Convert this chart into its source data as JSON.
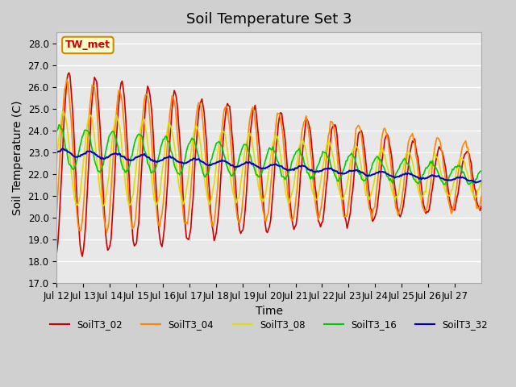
{
  "title": "Soil Temperature Set 3",
  "xlabel": "Time",
  "ylabel": "Soil Temperature (C)",
  "annotation": "TW_met",
  "annotation_color": "#cc0000",
  "annotation_bg": "#ffffcc",
  "annotation_border": "#cc8800",
  "ylim": [
    17.0,
    28.5
  ],
  "yticks": [
    17.0,
    18.0,
    19.0,
    20.0,
    21.0,
    22.0,
    23.0,
    24.0,
    25.0,
    26.0,
    27.0,
    28.0
  ],
  "xtick_labels": [
    "Jul 12",
    "Jul 13",
    "Jul 14",
    "Jul 15",
    "Jul 16",
    "Jul 17",
    "Jul 18",
    "Jul 19",
    "Jul 20",
    "Jul 21",
    "Jul 22",
    "Jul 23",
    "Jul 24",
    "Jul 25",
    "Jul 26",
    "Jul 27"
  ],
  "series": {
    "SoilT3_02": {
      "color": "#cc0000",
      "linewidth": 1.2
    },
    "SoilT3_04": {
      "color": "#ff8800",
      "linewidth": 1.2
    },
    "SoilT3_08": {
      "color": "#dddd00",
      "linewidth": 1.2
    },
    "SoilT3_16": {
      "color": "#00cc00",
      "linewidth": 1.2
    },
    "SoilT3_32": {
      "color": "#0000cc",
      "linewidth": 1.5
    }
  },
  "title_fontsize": 13,
  "axis_label_fontsize": 10,
  "tick_fontsize": 8.5
}
